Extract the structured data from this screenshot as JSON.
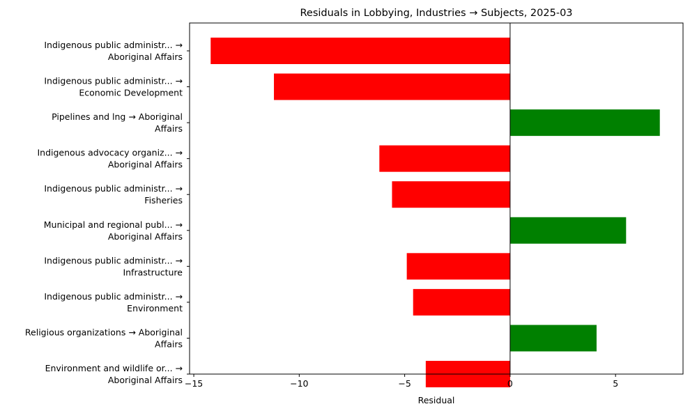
{
  "chart_data": {
    "type": "bar",
    "orientation": "horizontal",
    "title": "Residuals in Lobbying, Industries → Subjects, 2025-03",
    "xlabel": "Residual",
    "ylabel": "",
    "xlim": [
      -15.2,
      8.2
    ],
    "xticks": [
      -15,
      -10,
      -5,
      0,
      5
    ],
    "xtick_labels": [
      "−15",
      "−10",
      "−5",
      "0",
      "5"
    ],
    "grid": false,
    "legend": false,
    "colors": {
      "positive": "#008000",
      "negative": "#ff0000"
    },
    "categories": [
      [
        "Indigenous public administr... →",
        "Aboriginal Affairs"
      ],
      [
        "Indigenous public administr... →",
        "Economic Development"
      ],
      [
        "Pipelines and lng → Aboriginal",
        "Affairs"
      ],
      [
        "Indigenous advocacy organiz... →",
        "Aboriginal Affairs"
      ],
      [
        "Indigenous public administr... →",
        "Fisheries"
      ],
      [
        "Municipal and regional publ... →",
        "Aboriginal Affairs"
      ],
      [
        "Indigenous public administr... →",
        "Infrastructure"
      ],
      [
        "Indigenous public administr... →",
        "Environment"
      ],
      [
        "Religious organizations → Aboriginal",
        "Affairs"
      ],
      [
        "Environment and wildlife or... →",
        "Aboriginal Affairs"
      ]
    ],
    "values": [
      -14.2,
      -11.2,
      7.1,
      -6.2,
      -5.6,
      5.5,
      -4.9,
      -4.6,
      4.1,
      -4.0
    ]
  }
}
